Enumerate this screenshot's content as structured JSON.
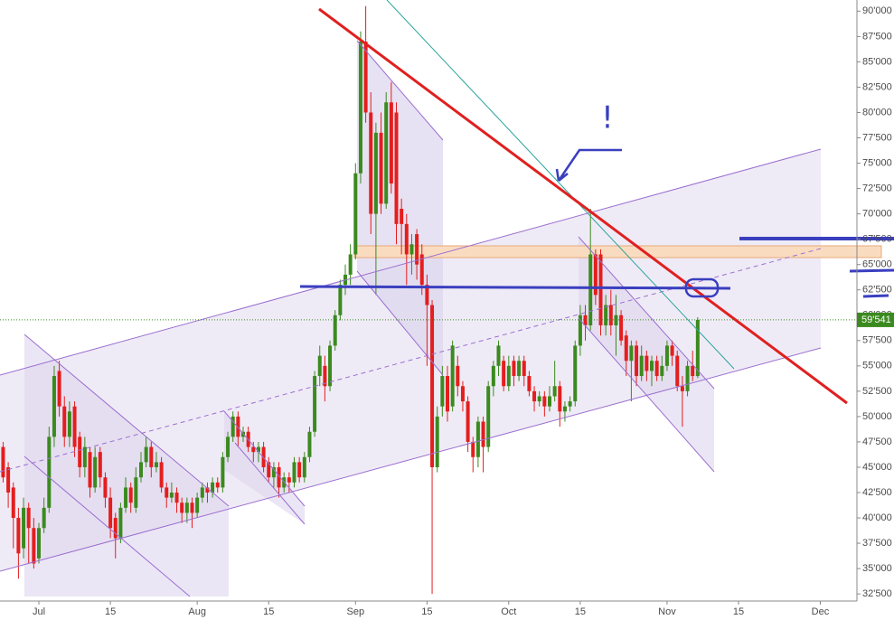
{
  "chart_data": {
    "type": "candlestick",
    "categories": [
      null,
      null,
      null,
      null,
      null,
      null,
      null,
      "Jul",
      null,
      null,
      null,
      null,
      null,
      null,
      null,
      null,
      null,
      null,
      null,
      null,
      null,
      "15",
      null,
      null,
      null,
      null,
      null,
      null,
      null,
      null,
      null,
      null,
      null,
      null,
      null,
      null,
      null,
      null,
      "Aug",
      null,
      null,
      null,
      null,
      null,
      null,
      null,
      null,
      null,
      null,
      null,
      null,
      null,
      "15",
      null,
      null,
      null,
      null,
      null,
      null,
      null,
      null,
      null,
      null,
      null,
      null,
      null,
      null,
      null,
      null,
      "Sep",
      null,
      null,
      null,
      null,
      null,
      null,
      null,
      null,
      null,
      null,
      null,
      null,
      null,
      "15",
      null,
      null,
      null,
      null,
      null,
      null,
      null,
      null,
      null,
      null,
      null,
      null,
      null,
      null,
      null,
      "Oct",
      null,
      null,
      null,
      null,
      null,
      null,
      null,
      null,
      null,
      null,
      null,
      null,
      null,
      "15",
      null,
      null,
      null,
      null,
      null,
      null,
      null,
      null,
      null,
      null,
      null,
      null,
      null,
      null,
      null,
      null,
      "Nov",
      null,
      null,
      null,
      null,
      null,
      null,
      null,
      null,
      null,
      null,
      null,
      null,
      null,
      "15",
      null,
      null,
      null,
      null,
      null,
      null,
      null,
      null,
      null,
      null,
      null,
      null,
      null,
      null,
      null,
      "Dec",
      null,
      null,
      null
    ],
    "open": [
      47000,
      45000,
      43000,
      40000,
      37000,
      41000,
      39000,
      36000,
      39000,
      41000,
      48000,
      54500,
      51000,
      48000,
      51000,
      48000,
      45000,
      46500,
      43000,
      46500,
      44000,
      42000,
      40000,
      38000,
      41000,
      43000,
      41000,
      44000,
      45500,
      47000,
      45000,
      45500,
      43000,
      42000,
      42500,
      41500,
      40500,
      41500,
      40500,
      42000,
      43000,
      42500,
      43500,
      43000,
      46000,
      48000,
      50000,
      48000,
      48500,
      47000,
      46500,
      47000,
      45500,
      44000,
      45000,
      43000,
      44000,
      43500,
      45500,
      44000,
      46000,
      48500,
      54000,
      55000,
      53000,
      57000,
      60000,
      63000,
      64000,
      66000,
      74000,
      87000,
      80000,
      70000,
      78000,
      71000,
      81000,
      80000,
      70500,
      69000,
      66000,
      68000,
      66000,
      63000,
      61000,
      45000,
      51000,
      54000,
      51000,
      55000,
      53000,
      51500,
      47500,
      46000,
      49500,
      47000,
      53000,
      55000,
      55500,
      53000,
      55500,
      54000,
      55500,
      54000,
      52500,
      51500,
      52000,
      51000,
      52000,
      53000,
      50500,
      51000,
      51500,
      57000,
      60000,
      59000,
      66000,
      66000,
      59000,
      61000,
      59000,
      60000,
      58000,
      55500,
      57000,
      54000,
      56000,
      54500,
      55500,
      54000,
      55000,
      57000,
      56000,
      53000,
      52500,
      55000,
      54000,
      null,
      null,
      null,
      null,
      null,
      null,
      null,
      null,
      null,
      null,
      null,
      null,
      null,
      null,
      null,
      null,
      null,
      null,
      null,
      null,
      null,
      null,
      null,
      null,
      null,
      null,
      null
    ],
    "high": [
      47500,
      45500,
      43500,
      41000,
      42000,
      41500,
      40000,
      39500,
      42000,
      49000,
      55000,
      55500,
      52000,
      51500,
      51500,
      48500,
      48000,
      47000,
      47000,
      47000,
      44500,
      43000,
      40500,
      41500,
      44000,
      43500,
      45000,
      46500,
      48000,
      47500,
      46500,
      46000,
      43500,
      43500,
      43000,
      42000,
      42000,
      42000,
      42500,
      43500,
      43500,
      44000,
      44000,
      46500,
      48500,
      50500,
      50500,
      49000,
      49000,
      47500,
      47500,
      47500,
      46000,
      45500,
      45500,
      44500,
      44500,
      46000,
      46000,
      46500,
      49000,
      54500,
      57000,
      56000,
      57500,
      60500,
      63500,
      65000,
      67000,
      75000,
      88000,
      90500,
      82000,
      79000,
      80000,
      82000,
      83000,
      81000,
      71500,
      70000,
      68000,
      68500,
      67000,
      64000,
      61500,
      51000,
      55000,
      55000,
      57500,
      56000,
      53500,
      52000,
      48000,
      50000,
      50000,
      53500,
      55500,
      57500,
      56000,
      56000,
      56000,
      56000,
      56000,
      54500,
      53000,
      52500,
      52500,
      53000,
      55500,
      53500,
      51500,
      52000,
      57500,
      61000,
      61000,
      70500,
      66500,
      66500,
      62000,
      62500,
      62000,
      60500,
      58500,
      57500,
      57500,
      57000,
      56500,
      56000,
      56000,
      56000,
      57500,
      57500,
      56500,
      54000,
      55500,
      56500,
      59800,
      null,
      null,
      null,
      null,
      null,
      null,
      null,
      null,
      null,
      null,
      null,
      null,
      null,
      null,
      null,
      null,
      null,
      null,
      null,
      null,
      null,
      null,
      null,
      null,
      null,
      null,
      null
    ],
    "low": [
      43500,
      41000,
      37000,
      34000,
      36000,
      35500,
      35000,
      35500,
      38500,
      40500,
      47000,
      50000,
      47000,
      47000,
      46000,
      44000,
      44000,
      42000,
      42500,
      43000,
      41000,
      38000,
      36000,
      37500,
      40500,
      40500,
      40500,
      43500,
      45000,
      44000,
      44500,
      42500,
      41000,
      41500,
      40500,
      39500,
      39500,
      39000,
      40000,
      41500,
      41500,
      42000,
      42500,
      42500,
      45500,
      47500,
      47000,
      47500,
      46500,
      45500,
      45500,
      44500,
      43500,
      43000,
      42000,
      42500,
      42500,
      43000,
      43500,
      43500,
      45500,
      48000,
      53000,
      51500,
      52500,
      56500,
      59500,
      62000,
      63000,
      65500,
      73000,
      79000,
      68000,
      62000,
      70000,
      70500,
      72000,
      67000,
      66000,
      63000,
      64000,
      63500,
      62000,
      55000,
      32500,
      44500,
      50000,
      49500,
      50500,
      52000,
      50500,
      46500,
      44500,
      45000,
      44500,
      46500,
      52000,
      54000,
      52500,
      52500,
      53000,
      53500,
      53000,
      52000,
      50500,
      51000,
      50000,
      50500,
      51500,
      49000,
      49500,
      50500,
      51000,
      56000,
      57500,
      58500,
      61000,
      58000,
      58000,
      58000,
      56000,
      57000,
      54000,
      51500,
      53000,
      53500,
      53500,
      53000,
      53500,
      53500,
      54500,
      55000,
      52500,
      49000,
      52000,
      53500,
      53800,
      null,
      null,
      null,
      null,
      null,
      null,
      null,
      null,
      null,
      null,
      null,
      null,
      null,
      null,
      null,
      null,
      null,
      null,
      null,
      null,
      null,
      null,
      null,
      null,
      null,
      null,
      null
    ],
    "close": [
      44000,
      42500,
      40000,
      36500,
      41000,
      39000,
      35500,
      39000,
      41000,
      48000,
      54000,
      51000,
      48000,
      50500,
      47000,
      45000,
      47000,
      43000,
      46000,
      44000,
      42000,
      39000,
      38000,
      41000,
      43000,
      41500,
      44000,
      45500,
      47000,
      45000,
      45500,
      43000,
      42000,
      42500,
      41500,
      40500,
      41500,
      40500,
      42000,
      43000,
      42500,
      43500,
      43000,
      46000,
      48000,
      50000,
      48000,
      48500,
      47000,
      46500,
      47000,
      45000,
      44000,
      45000,
      43000,
      44000,
      43500,
      45500,
      44000,
      46000,
      48500,
      54000,
      56000,
      53000,
      57000,
      60000,
      63000,
      64000,
      66000,
      74000,
      87000,
      80000,
      70000,
      78000,
      71000,
      81000,
      73000,
      69000,
      69000,
      66000,
      67000,
      65000,
      63000,
      61000,
      45000,
      50000,
      54000,
      50500,
      57000,
      53000,
      51500,
      47500,
      46000,
      49500,
      47000,
      53000,
      55000,
      57000,
      53000,
      55000,
      54000,
      55500,
      54000,
      52500,
      51500,
      52000,
      51000,
      52000,
      53000,
      50500,
      51000,
      51500,
      57000,
      60000,
      59000,
      66000,
      62000,
      59000,
      61000,
      59000,
      60000,
      57500,
      55500,
      57000,
      54000,
      56000,
      54500,
      55500,
      54000,
      55000,
      57000,
      56000,
      53000,
      52500,
      55000,
      54000,
      59541,
      null,
      null,
      null,
      null,
      null,
      null,
      null,
      null,
      null,
      null,
      null,
      null,
      null,
      null,
      null,
      null,
      null,
      null,
      null,
      null,
      null,
      null,
      null,
      null,
      null,
      null,
      null
    ],
    "up_color": "#3b8a1f",
    "down_color": "#e41e1e",
    "last_price": {
      "value": 59541,
      "label": "59'541"
    },
    "last_price_color": "#3b8a1f",
    "ylim": [
      31800,
      91100
    ],
    "yticks": [
      {
        "value": 90000,
        "label": "90'000"
      },
      {
        "value": 87500,
        "label": "87'500"
      },
      {
        "value": 85000,
        "label": "85'000"
      },
      {
        "value": 82500,
        "label": "82'500"
      },
      {
        "value": 80000,
        "label": "80'000"
      },
      {
        "value": 77500,
        "label": "77'500"
      },
      {
        "value": 75000,
        "label": "75'000"
      },
      {
        "value": 72500,
        "label": "72'500"
      },
      {
        "value": 70000,
        "label": "70'000"
      },
      {
        "value": 67500,
        "label": "67'500"
      },
      {
        "value": 65000,
        "label": "65'000"
      },
      {
        "value": 62500,
        "label": "62'500"
      },
      {
        "value": 60000,
        "label": "60'000"
      },
      {
        "value": 57500,
        "label": "57'500"
      },
      {
        "value": 55000,
        "label": "55'000"
      },
      {
        "value": 52500,
        "label": "52'500"
      },
      {
        "value": 50000,
        "label": "50'000"
      },
      {
        "value": 47500,
        "label": "47'500"
      },
      {
        "value": 45000,
        "label": "45'000"
      },
      {
        "value": 42500,
        "label": "42'500"
      },
      {
        "value": 40000,
        "label": "40'000"
      },
      {
        "value": 37500,
        "label": "37'500"
      },
      {
        "value": 35000,
        "label": "35'000"
      },
      {
        "value": 32500,
        "label": "32'500"
      }
    ],
    "annotations": [
      "!"
    ]
  }
}
